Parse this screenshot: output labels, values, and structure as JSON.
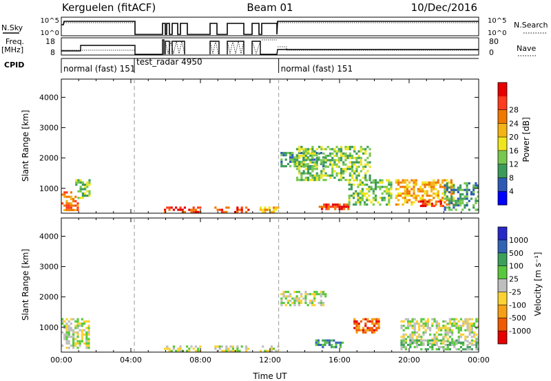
{
  "header": {
    "station": "Kerguelen (fitACF)",
    "beam": "Beam 01",
    "date": "10/Dec/2016"
  },
  "summary_panels": {
    "nsky_label": "N.Sky",
    "nsky_ticks": [
      "10^5",
      "10^0"
    ],
    "nsearch_label": "N.Search",
    "nsearch_ticks": [
      "10^5",
      "10^0"
    ],
    "freq_label_line1": "Freq.",
    "freq_label_line2": "[MHz]",
    "freq_ticks": [
      "18",
      "8"
    ],
    "nave_label": "Nave",
    "nave_ticks": [
      "80",
      "0"
    ],
    "cpid_label": "CPID",
    "modes": [
      {
        "label": "normal (fast) 151",
        "start_hour": 0.0,
        "end_hour": 4.2
      },
      {
        "label": "test_radar 4950",
        "start_hour": 4.2,
        "end_hour": 12.5
      },
      {
        "label": "normal (fast) 151",
        "start_hour": 12.5,
        "end_hour": 24.0
      }
    ]
  },
  "colors": {
    "power": [
      "#0000ff",
      "#2d5ab4",
      "#3c9b5a",
      "#78c850",
      "#f0e61e",
      "#f5b414",
      "#f07800",
      "#ff3c1e",
      "#e60000"
    ],
    "velocity": [
      "#e60000",
      "#f05a00",
      "#f5a014",
      "#fad232",
      "#bebebe",
      "#5ac83c",
      "#3ca05a",
      "#3264b4",
      "#2828c8"
    ],
    "ground_scatter": "#b4b4b4"
  },
  "chart_data": [
    {
      "type": "heatmap",
      "title": "Power",
      "xlabel": "",
      "ylabel": "Slant Range [km]",
      "xlim": [
        0,
        24
      ],
      "ylim": [
        180,
        4600
      ],
      "y_ticks": [
        1000,
        2000,
        3000,
        4000
      ],
      "colorbar_label": "Power [dB]",
      "colorbar_ticks": [
        "4",
        "8",
        "12",
        "16",
        "20",
        "24",
        "28"
      ],
      "dashed_lines_hour": [
        4.2,
        12.5
      ],
      "echo_regions": [
        {
          "x": [
            0.0,
            0.9
          ],
          "y": [
            300,
            900
          ],
          "level": 6
        },
        {
          "x": [
            0.8,
            1.6
          ],
          "y": [
            700,
            1300
          ],
          "level": 3
        },
        {
          "x": [
            5.9,
            8.1
          ],
          "y": [
            250,
            400
          ],
          "level": 7
        },
        {
          "x": [
            8.8,
            10.8
          ],
          "y": [
            250,
            400
          ],
          "level": 7
        },
        {
          "x": [
            11.4,
            12.5
          ],
          "y": [
            250,
            400
          ],
          "level": 5
        },
        {
          "x": [
            12.6,
            15.2
          ],
          "y": [
            1700,
            2200
          ],
          "level": 2
        },
        {
          "x": [
            13.5,
            17.8
          ],
          "y": [
            1300,
            2400
          ],
          "level": 3
        },
        {
          "x": [
            14.8,
            16.5
          ],
          "y": [
            350,
            500
          ],
          "level": 7
        },
        {
          "x": [
            16.5,
            19.0
          ],
          "y": [
            500,
            1300
          ],
          "level": 3
        },
        {
          "x": [
            19.2,
            22.5
          ],
          "y": [
            500,
            1300
          ],
          "level": 5
        },
        {
          "x": [
            20.5,
            22.0
          ],
          "y": [
            400,
            600
          ],
          "level": 7
        },
        {
          "x": [
            22.0,
            24.0
          ],
          "y": [
            300,
            1200
          ],
          "level": 2
        }
      ]
    },
    {
      "type": "heatmap",
      "title": "Velocity",
      "xlabel": "Time UT",
      "ylabel": "Slant Range [km]",
      "xlim": [
        0,
        24
      ],
      "ylim": [
        180,
        4600
      ],
      "x_ticks": [
        "00:00",
        "04:00",
        "08:00",
        "12:00",
        "16:00",
        "20:00",
        "00:00"
      ],
      "y_ticks": [
        1000,
        2000,
        3000,
        4000
      ],
      "colorbar_label": "Velocity [m s⁻¹]",
      "colorbar_ticks": [
        "-1000",
        "-500",
        "-100",
        "-25",
        "25",
        "100",
        "500",
        "1000"
      ],
      "dashed_lines_hour": [
        4.2,
        12.5
      ],
      "echo_regions": [
        {
          "x": [
            0.0,
            1.6
          ],
          "y": [
            300,
            1300
          ],
          "level": 4
        },
        {
          "x": [
            5.9,
            8.1
          ],
          "y": [
            250,
            400
          ],
          "level": 4
        },
        {
          "x": [
            8.8,
            10.8
          ],
          "y": [
            250,
            400
          ],
          "level": 4
        },
        {
          "x": [
            11.4,
            12.5
          ],
          "y": [
            250,
            400
          ],
          "level": 4
        },
        {
          "x": [
            12.6,
            15.2
          ],
          "y": [
            1700,
            2200
          ],
          "level": 4
        },
        {
          "x": [
            14.6,
            16.2
          ],
          "y": [
            350,
            600
          ],
          "level": 6
        },
        {
          "x": [
            16.8,
            18.2
          ],
          "y": [
            800,
            1300
          ],
          "level": 1
        },
        {
          "x": [
            19.5,
            24.0
          ],
          "y": [
            500,
            1300
          ],
          "level": 4
        },
        {
          "x": [
            19.5,
            24.0
          ],
          "y": [
            250,
            600
          ],
          "level": 5
        }
      ]
    }
  ]
}
